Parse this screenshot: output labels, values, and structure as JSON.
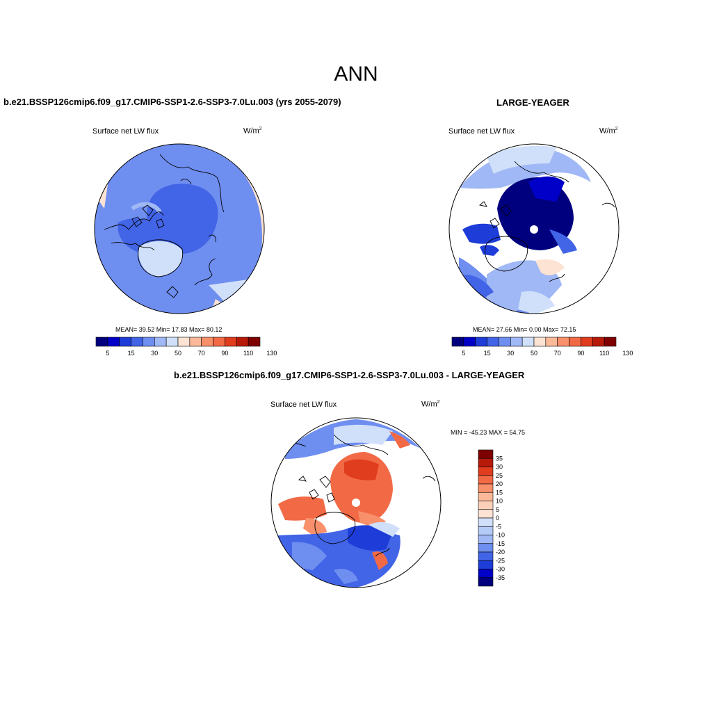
{
  "season": "ANN",
  "colors": {
    "div": [
      "#00007f",
      "#0000c8",
      "#1e3cd8",
      "#4264e6",
      "#6e8ef0",
      "#a0b8f5",
      "#d0e0fa",
      "#fde3d3",
      "#fbb99a",
      "#f8906b",
      "#f26a45",
      "#e03c1e",
      "#b81a0a",
      "#7f0000"
    ],
    "land": "#ffffff",
    "coast": "#000000"
  },
  "panels": [
    {
      "title": "b.e21.BSSP126cmip6.f09_g17.CMIP6-SSP1-2.6-SSP3-7.0Lu.003 (yrs 2055-2079)",
      "variable": "Surface net LW flux",
      "units_base": "W/m",
      "units_exp": "2",
      "stats": "MEAN=  39.52  Min=  17.83  Max=  80.12",
      "colorbar_ticks": [
        "5",
        "15",
        "30",
        "50",
        "70",
        "90",
        "110",
        "130"
      ]
    },
    {
      "title": "LARGE-YEAGER",
      "variable": "Surface net LW flux",
      "units_base": "W/m",
      "units_exp": "2",
      "stats": "MEAN=  27.66  Min=   0.00  Max=  72.15",
      "colorbar_ticks": [
        "5",
        "15",
        "30",
        "50",
        "70",
        "90",
        "110",
        "130"
      ]
    },
    {
      "title": "b.e21.BSSP126cmip6.f09_g17.CMIP6-SSP1-2.6-SSP3-7.0Lu.003 - LARGE-YEAGER",
      "variable": "Surface net LW flux",
      "units_base": "W/m",
      "units_exp": "2",
      "stats": "MIN = -45.23 MAX =  54.75",
      "colorbar_ticks": [
        "35",
        "30",
        "25",
        "20",
        "15",
        "10",
        "5",
        "0",
        "-5",
        "-10",
        "-15",
        "-20",
        "-25",
        "-30",
        "-35"
      ]
    }
  ]
}
